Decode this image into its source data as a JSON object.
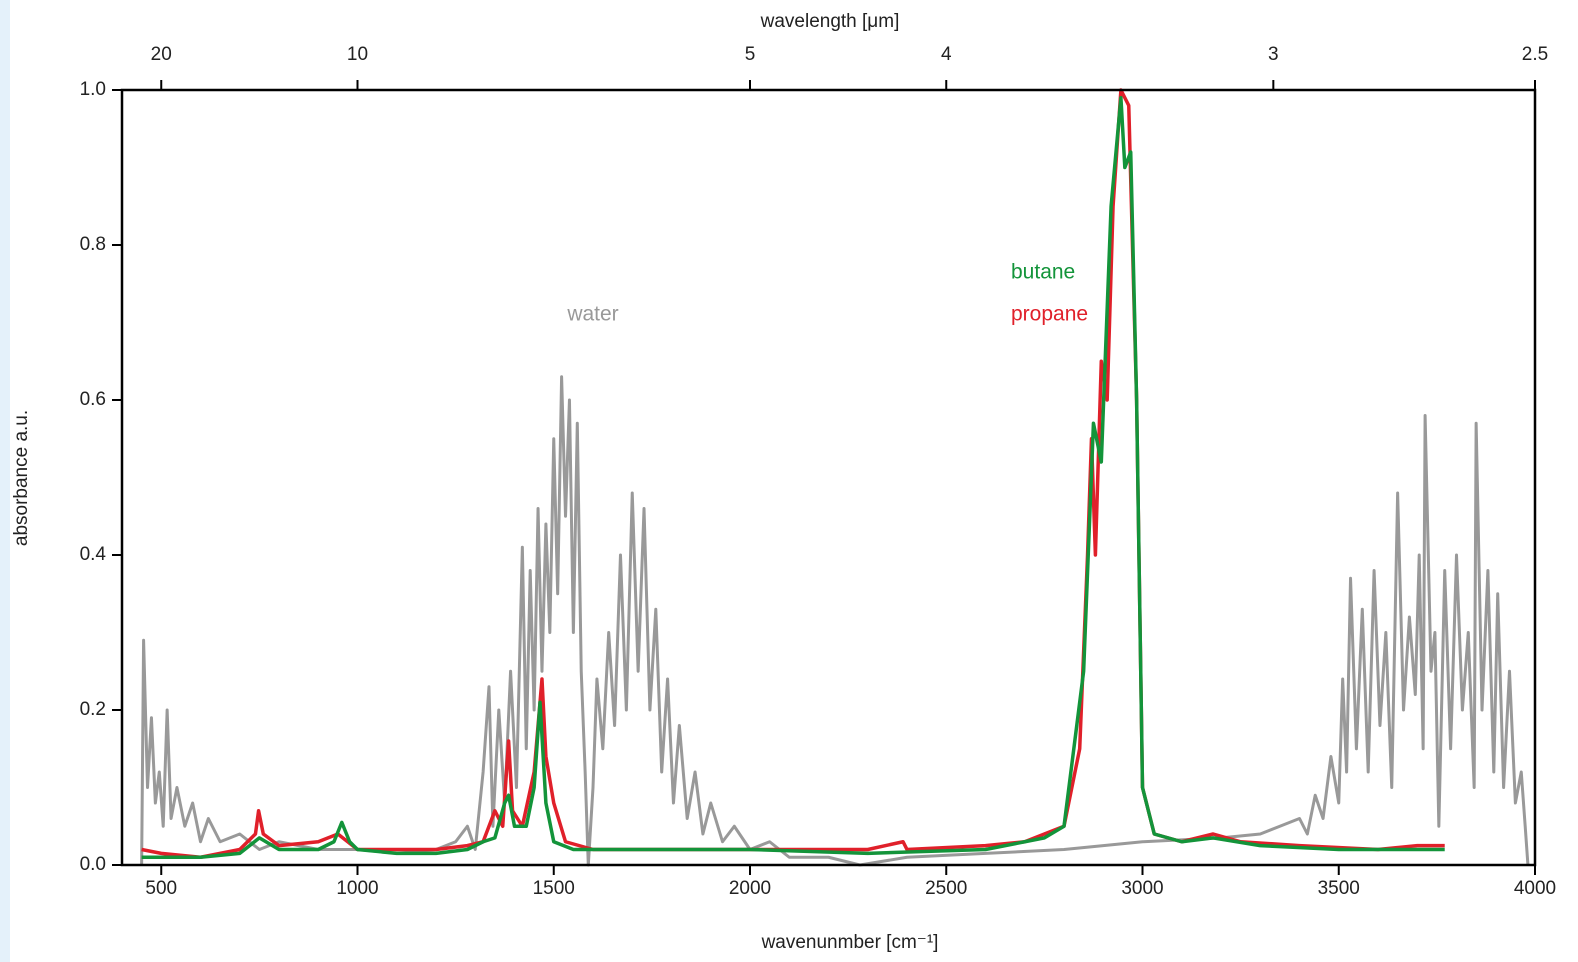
{
  "chart_data": {
    "type": "line",
    "xlabel": "wavenunmber [cm⁻¹]",
    "ylabel": "absorbance a.u.",
    "x2label": "wavelength [μm]",
    "xlim": [
      400,
      4000
    ],
    "xticks": [
      500,
      1000,
      1500,
      2000,
      2500,
      3000,
      3500,
      4000
    ],
    "x2ticks": [
      20,
      10,
      5,
      4,
      3,
      2.5
    ],
    "ylim": [
      0,
      1
    ],
    "yticks": [
      {
        "value": 0,
        "label": "0.0"
      },
      0.2,
      0.4,
      0.6,
      0.8,
      {
        "value": 1,
        "label": "1.0"
      }
    ],
    "grid": false,
    "series": [
      {
        "name": "water",
        "color": "#999999",
        "x": [
          450,
          455,
          465,
          475,
          485,
          495,
          505,
          515,
          525,
          540,
          560,
          580,
          600,
          620,
          650,
          700,
          750,
          800,
          900,
          1000,
          1100,
          1200,
          1250,
          1280,
          1300,
          1320,
          1335,
          1345,
          1360,
          1375,
          1390,
          1405,
          1420,
          1430,
          1440,
          1450,
          1460,
          1470,
          1480,
          1490,
          1500,
          1510,
          1520,
          1530,
          1540,
          1550,
          1560,
          1570,
          1580,
          1588,
          1600,
          1610,
          1625,
          1640,
          1655,
          1670,
          1685,
          1700,
          1715,
          1730,
          1745,
          1760,
          1775,
          1790,
          1805,
          1820,
          1840,
          1860,
          1880,
          1900,
          1930,
          1960,
          2000,
          2050,
          2100,
          2200,
          2280,
          2400,
          2600,
          2800,
          3000,
          3200,
          3300,
          3350,
          3400,
          3420,
          3440,
          3460,
          3480,
          3500,
          3510,
          3520,
          3530,
          3545,
          3560,
          3575,
          3590,
          3605,
          3620,
          3635,
          3650,
          3665,
          3680,
          3695,
          3705,
          3715,
          3720,
          3735,
          3745,
          3755,
          3770,
          3785,
          3800,
          3815,
          3830,
          3845,
          3850,
          3865,
          3880,
          3895,
          3905,
          3920,
          3935,
          3950,
          3965,
          3975,
          3982
        ],
        "values": [
          0.0,
          0.29,
          0.1,
          0.19,
          0.08,
          0.12,
          0.05,
          0.2,
          0.06,
          0.1,
          0.05,
          0.08,
          0.03,
          0.06,
          0.03,
          0.04,
          0.02,
          0.03,
          0.02,
          0.02,
          0.015,
          0.02,
          0.03,
          0.05,
          0.02,
          0.12,
          0.23,
          0.05,
          0.2,
          0.08,
          0.25,
          0.1,
          0.41,
          0.15,
          0.38,
          0.2,
          0.46,
          0.25,
          0.44,
          0.3,
          0.55,
          0.35,
          0.63,
          0.45,
          0.6,
          0.3,
          0.57,
          0.25,
          0.12,
          0.0,
          0.1,
          0.24,
          0.15,
          0.3,
          0.18,
          0.4,
          0.2,
          0.48,
          0.25,
          0.46,
          0.2,
          0.33,
          0.12,
          0.24,
          0.08,
          0.18,
          0.06,
          0.12,
          0.04,
          0.08,
          0.03,
          0.05,
          0.02,
          0.03,
          0.01,
          0.01,
          0.0,
          0.01,
          0.015,
          0.02,
          0.03,
          0.035,
          0.04,
          0.05,
          0.06,
          0.04,
          0.09,
          0.06,
          0.14,
          0.08,
          0.24,
          0.12,
          0.37,
          0.15,
          0.33,
          0.12,
          0.38,
          0.18,
          0.3,
          0.1,
          0.48,
          0.2,
          0.32,
          0.22,
          0.4,
          0.15,
          0.58,
          0.25,
          0.3,
          0.05,
          0.38,
          0.15,
          0.4,
          0.2,
          0.3,
          0.1,
          0.57,
          0.2,
          0.38,
          0.12,
          0.35,
          0.1,
          0.25,
          0.08,
          0.12,
          0.05,
          0.0
        ]
      },
      {
        "name": "propane",
        "color": "#e0202a",
        "x": [
          450,
          500,
          600,
          700,
          740,
          748,
          760,
          800,
          900,
          950,
          1000,
          1100,
          1200,
          1280,
          1320,
          1350,
          1370,
          1385,
          1395,
          1420,
          1450,
          1470,
          1480,
          1500,
          1530,
          1600,
          2000,
          2300,
          2390,
          2400,
          2600,
          2700,
          2750,
          2800,
          2840,
          2860,
          2870,
          2880,
          2895,
          2910,
          2925,
          2945,
          2965,
          2985,
          3000,
          3030,
          3100,
          3180,
          3250,
          3400,
          3600,
          3700,
          3770
        ],
        "values": [
          0.02,
          0.015,
          0.01,
          0.02,
          0.04,
          0.07,
          0.04,
          0.025,
          0.03,
          0.04,
          0.02,
          0.02,
          0.02,
          0.025,
          0.03,
          0.07,
          0.05,
          0.16,
          0.07,
          0.05,
          0.12,
          0.24,
          0.14,
          0.08,
          0.03,
          0.02,
          0.02,
          0.02,
          0.03,
          0.02,
          0.025,
          0.03,
          0.04,
          0.05,
          0.15,
          0.4,
          0.55,
          0.4,
          0.65,
          0.6,
          0.85,
          1.0,
          0.98,
          0.6,
          0.1,
          0.04,
          0.03,
          0.04,
          0.03,
          0.025,
          0.02,
          0.025,
          0.025
        ]
      },
      {
        "name": "butane",
        "color": "#13943a",
        "x": [
          450,
          500,
          600,
          700,
          750,
          800,
          900,
          940,
          960,
          980,
          1000,
          1100,
          1200,
          1280,
          1320,
          1350,
          1375,
          1385,
          1400,
          1430,
          1450,
          1465,
          1480,
          1500,
          1550,
          2000,
          2300,
          2600,
          2700,
          2750,
          2800,
          2850,
          2875,
          2895,
          2920,
          2945,
          2955,
          2970,
          2985,
          3000,
          3030,
          3100,
          3180,
          3300,
          3500,
          3700,
          3770
        ],
        "values": [
          0.01,
          0.01,
          0.01,
          0.015,
          0.035,
          0.02,
          0.02,
          0.03,
          0.055,
          0.03,
          0.02,
          0.015,
          0.015,
          0.02,
          0.03,
          0.035,
          0.08,
          0.09,
          0.05,
          0.05,
          0.1,
          0.21,
          0.08,
          0.03,
          0.02,
          0.02,
          0.015,
          0.02,
          0.03,
          0.035,
          0.05,
          0.25,
          0.57,
          0.52,
          0.85,
          0.99,
          0.9,
          0.92,
          0.6,
          0.1,
          0.04,
          0.03,
          0.035,
          0.025,
          0.02,
          0.02,
          0.02
        ]
      }
    ]
  }
}
